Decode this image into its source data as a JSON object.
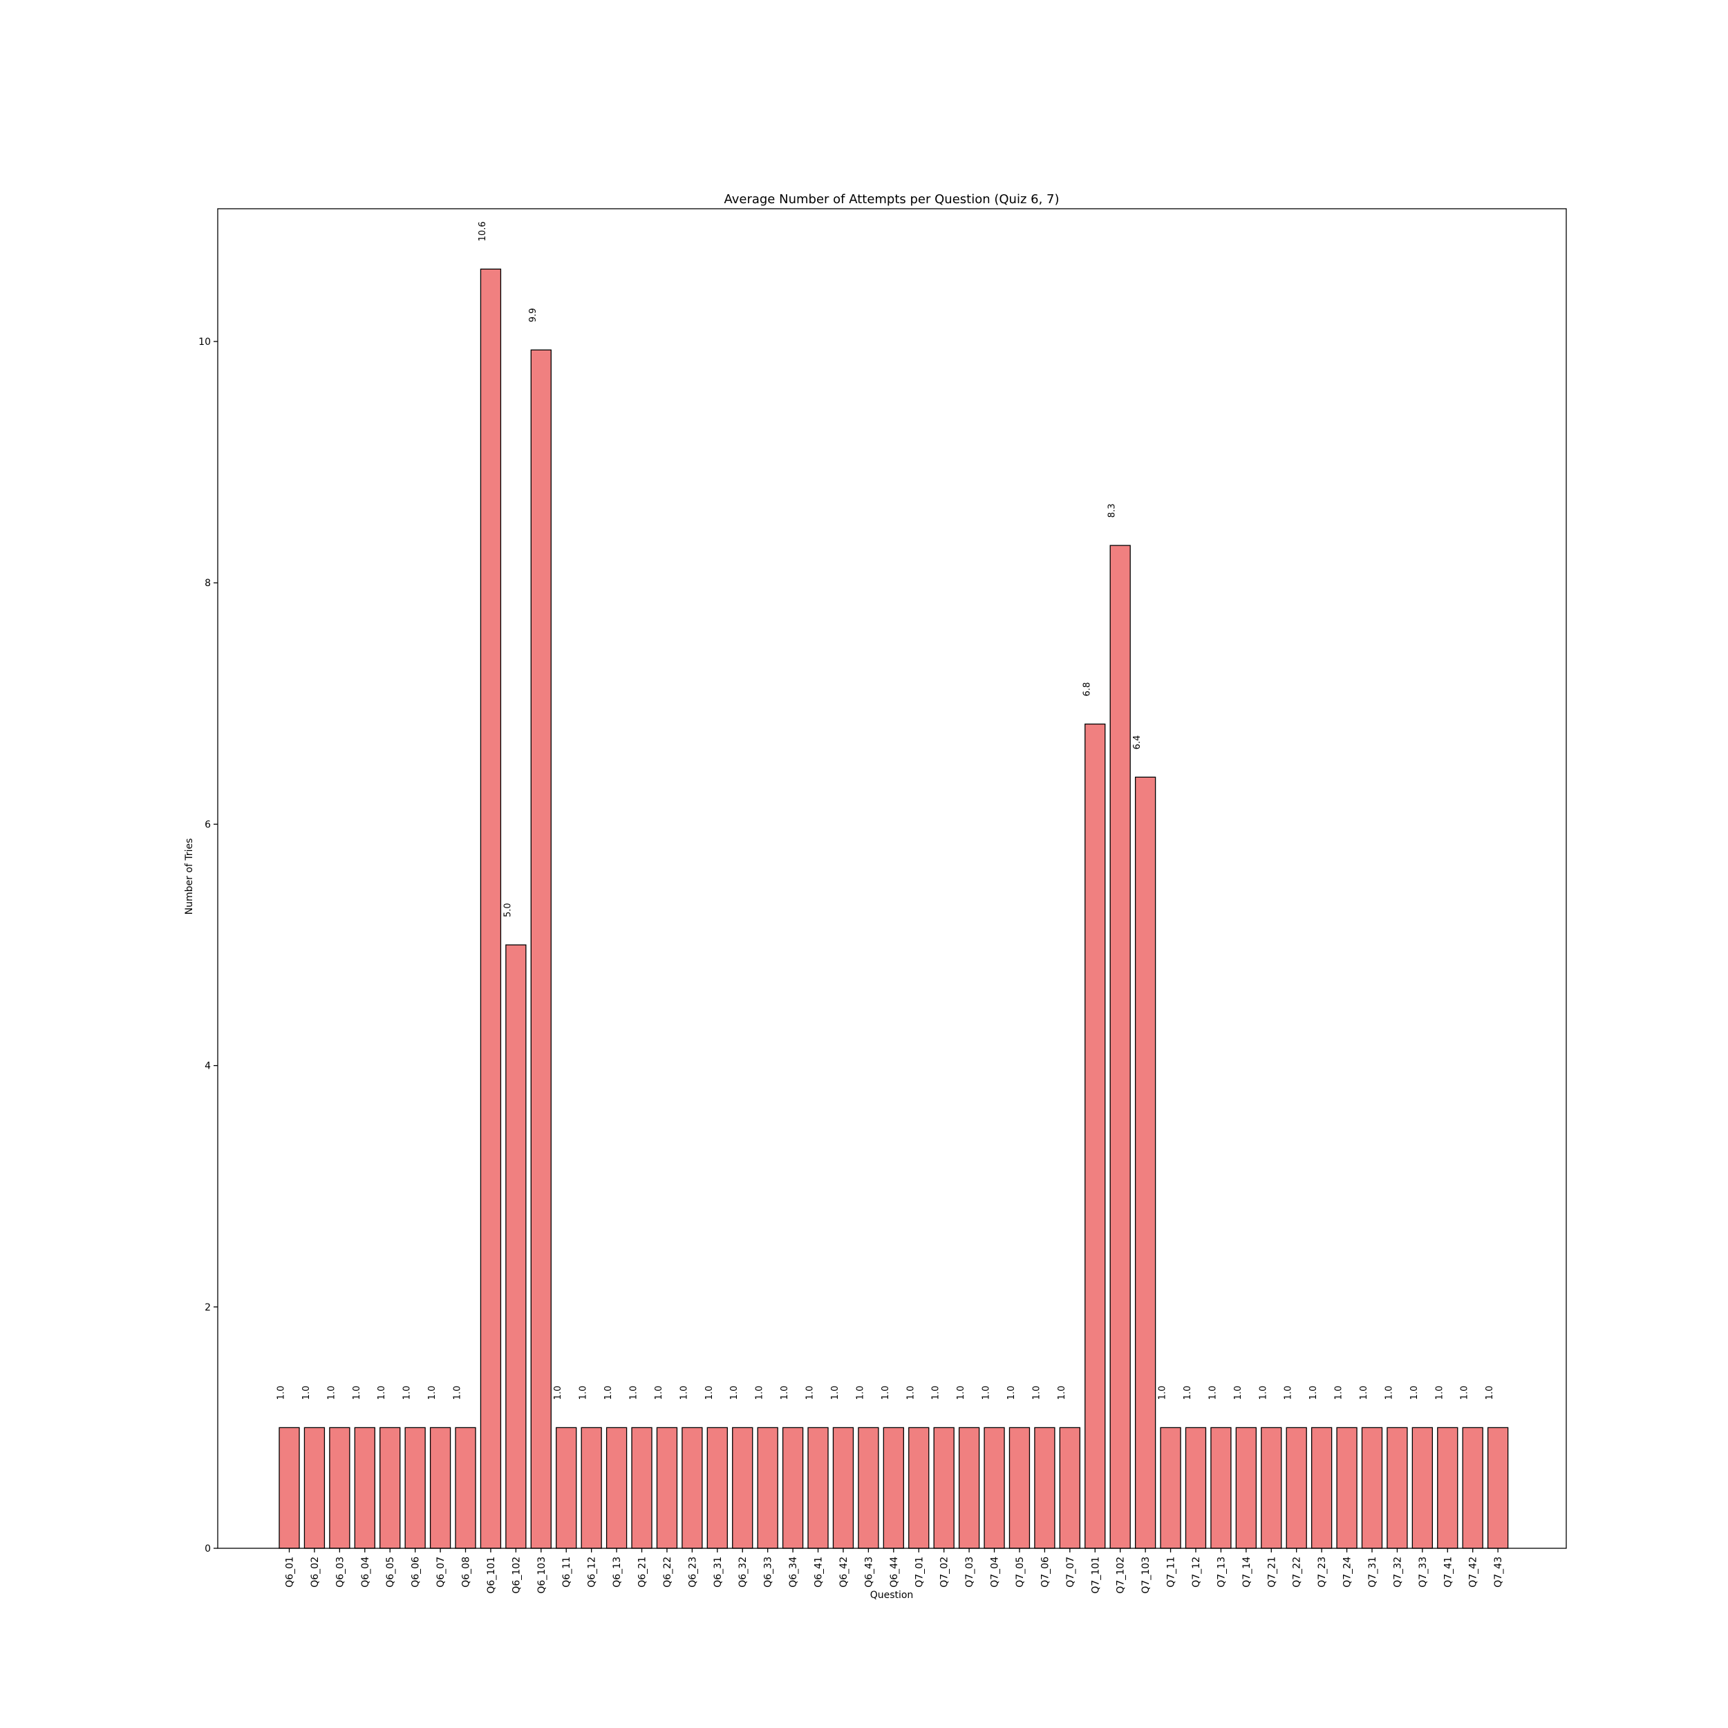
{
  "colors": {
    "bar": "#f08080",
    "edge": "#000000",
    "background": "#ffffff"
  },
  "chart_data": {
    "type": "bar",
    "title": "Average Number of Attempts per Question (Quiz 6, 7)",
    "xlabel": "Question",
    "ylabel": "Number of Tries",
    "ylim": [
      0,
      11.1
    ],
    "yticks": [
      0,
      2,
      4,
      6,
      8,
      10
    ],
    "grid": false,
    "categories": [
      "Q6_01",
      "Q6_02",
      "Q6_03",
      "Q6_04",
      "Q6_05",
      "Q6_06",
      "Q6_07",
      "Q6_08",
      "Q6_101",
      "Q6_102",
      "Q6_103",
      "Q6_11",
      "Q6_12",
      "Q6_13",
      "Q6_21",
      "Q6_22",
      "Q6_23",
      "Q6_31",
      "Q6_32",
      "Q6_33",
      "Q6_34",
      "Q6_41",
      "Q6_42",
      "Q6_43",
      "Q6_44",
      "Q7_01",
      "Q7_02",
      "Q7_03",
      "Q7_04",
      "Q7_05",
      "Q7_06",
      "Q7_07",
      "Q7_101",
      "Q7_102",
      "Q7_103",
      "Q7_11",
      "Q7_12",
      "Q7_13",
      "Q7_14",
      "Q7_21",
      "Q7_22",
      "Q7_23",
      "Q7_24",
      "Q7_31",
      "Q7_32",
      "Q7_33",
      "Q7_41",
      "Q7_42",
      "Q7_43"
    ],
    "values": [
      1.0,
      1.0,
      1.0,
      1.0,
      1.0,
      1.0,
      1.0,
      1.0,
      10.6,
      5.0,
      9.93,
      1.0,
      1.0,
      1.0,
      1.0,
      1.0,
      1.0,
      1.0,
      1.0,
      1.0,
      1.0,
      1.0,
      1.0,
      1.0,
      1.0,
      1.0,
      1.0,
      1.0,
      1.0,
      1.0,
      1.0,
      1.0,
      6.83,
      8.31,
      6.39,
      1.0,
      1.0,
      1.0,
      1.0,
      1.0,
      1.0,
      1.0,
      1.0,
      1.0,
      1.0,
      1.0,
      1.0,
      1.0,
      1.0
    ],
    "data_labels": [
      "1.0",
      "1.0",
      "1.0",
      "1.0",
      "1.0",
      "1.0",
      "1.0",
      "1.0",
      "10.6",
      "5.0",
      "9.9",
      "1.0",
      "1.0",
      "1.0",
      "1.0",
      "1.0",
      "1.0",
      "1.0",
      "1.0",
      "1.0",
      "1.0",
      "1.0",
      "1.0",
      "1.0",
      "1.0",
      "1.0",
      "1.0",
      "1.0",
      "1.0",
      "1.0",
      "1.0",
      "1.0",
      "6.8",
      "8.3",
      "6.4",
      "1.0",
      "1.0",
      "1.0",
      "1.0",
      "1.0",
      "1.0",
      "1.0",
      "1.0",
      "1.0",
      "1.0",
      "1.0",
      "1.0",
      "1.0",
      "1.0"
    ]
  }
}
